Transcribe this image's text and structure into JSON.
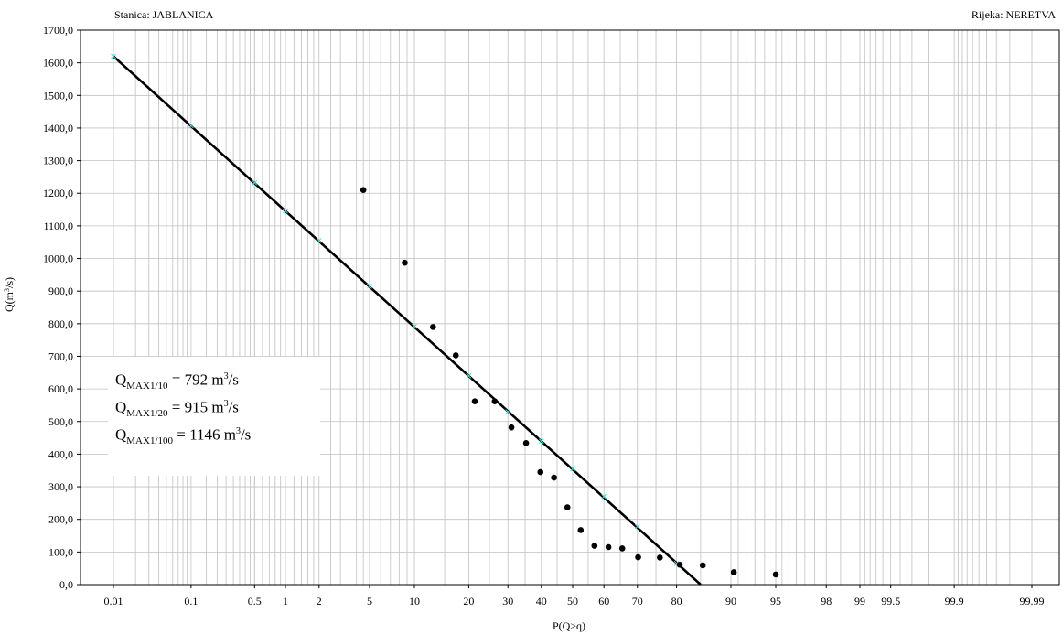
{
  "header": {
    "station": "Stanica: JABLANICA",
    "river": "Rijeka: NERETVA"
  },
  "legend": {
    "lines": [
      {
        "prefix": "Q",
        "sub": "MAX1/10",
        "mid": " = 792 m",
        "sup": "3",
        "suffix": "/s"
      },
      {
        "prefix": "Q",
        "sub": "MAX1/20",
        "mid": " = 915 m",
        "sup": "3",
        "suffix": "/s"
      },
      {
        "prefix": "Q",
        "sub": "MAX1/100",
        "mid": " = 1146 m",
        "sup": "3",
        "suffix": "/s"
      }
    ]
  },
  "colors": {
    "grid": "#c0c0c0",
    "line": "#000000",
    "points": "#000000",
    "line_markers": "#40e0d0"
  },
  "chart_data": {
    "type": "scatter",
    "x_scale": "normal-probability",
    "xlabel": "P(Q>q)",
    "ylabel": "Q(m³/s)",
    "ylim": [
      0,
      1700
    ],
    "y_tick_step": 100,
    "y_ticks": [
      "0,0",
      "100,0",
      "200,0",
      "300,0",
      "400,0",
      "500,0",
      "600,0",
      "700,0",
      "800,0",
      "900,0",
      "1000,0",
      "1100,0",
      "1200,0",
      "1300,0",
      "1400,0",
      "1500,0",
      "1600,0",
      "1700,0"
    ],
    "x_ticks": [
      0.01,
      0.1,
      0.5,
      1,
      2,
      5,
      10,
      20,
      30,
      40,
      50,
      60,
      70,
      80,
      90,
      95,
      98,
      99,
      99.5,
      99.9,
      99.99
    ],
    "x_tick_labels": [
      "0.01",
      "0.1",
      "0.5",
      "1",
      "2",
      "5",
      "10",
      "20",
      "30",
      "40",
      "50",
      "60",
      "70",
      "80",
      "90",
      "95",
      "98",
      "99",
      "99.5",
      "99.9",
      "99.99"
    ],
    "grid": true,
    "series": [
      {
        "kind": "observed",
        "points": [
          {
            "p": 4.5,
            "q": 1210
          },
          {
            "p": 8.7,
            "q": 987
          },
          {
            "p": 12.9,
            "q": 790
          },
          {
            "p": 17.2,
            "q": 703
          },
          {
            "p": 21.4,
            "q": 562
          },
          {
            "p": 26.4,
            "q": 562
          },
          {
            "p": 31.0,
            "q": 482
          },
          {
            "p": 35.3,
            "q": 434
          },
          {
            "p": 39.7,
            "q": 345
          },
          {
            "p": 44.0,
            "q": 328
          },
          {
            "p": 48.3,
            "q": 237
          },
          {
            "p": 52.6,
            "q": 167
          },
          {
            "p": 57.0,
            "q": 119
          },
          {
            "p": 61.4,
            "q": 115
          },
          {
            "p": 65.6,
            "q": 111
          },
          {
            "p": 70.2,
            "q": 84
          },
          {
            "p": 76.0,
            "q": 83
          },
          {
            "p": 80.7,
            "q": 61
          },
          {
            "p": 85.4,
            "q": 59
          },
          {
            "p": 90.4,
            "q": 38
          },
          {
            "p": 95.0,
            "q": 31
          }
        ]
      },
      {
        "kind": "fitted",
        "p": [
          0.01,
          85
        ],
        "q": [
          1620,
          0
        ],
        "markers": [
          {
            "p": 0.01,
            "q": 1620
          },
          {
            "p": 0.1,
            "q": 1407
          },
          {
            "p": 0.5,
            "q": 1232
          },
          {
            "p": 1,
            "q": 1146
          },
          {
            "p": 2,
            "q": 1055
          },
          {
            "p": 5,
            "q": 915
          },
          {
            "p": 10,
            "q": 792
          },
          {
            "p": 20,
            "q": 640
          },
          {
            "p": 30,
            "q": 530
          },
          {
            "p": 40,
            "q": 440
          },
          {
            "p": 50,
            "q": 355
          },
          {
            "p": 60,
            "q": 270
          },
          {
            "p": 70,
            "q": 178
          },
          {
            "p": 80,
            "q": 65
          }
        ]
      }
    ]
  }
}
